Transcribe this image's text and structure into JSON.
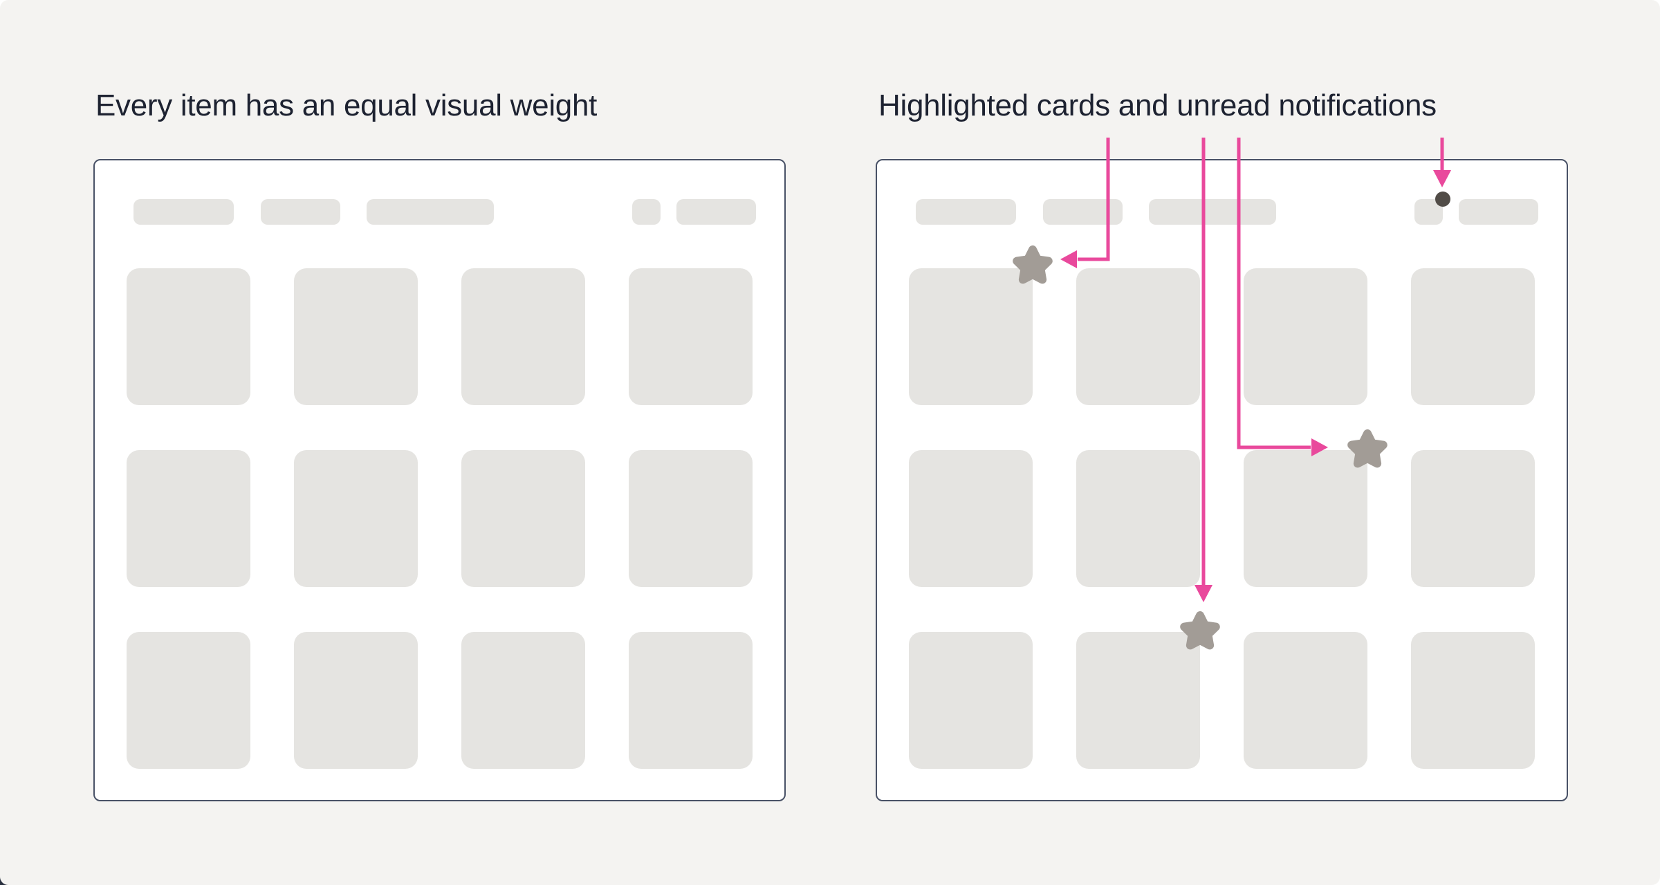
{
  "page": {
    "background_color": "#f4f3f1",
    "panel_border_color": "#485166",
    "placeholder_color": "#e5e4e1",
    "accent_pink": "#e9499c",
    "star_color": "#a29c96",
    "notification_dot_color": "#514c47",
    "title_color": "#1d2231"
  },
  "figures": {
    "left": {
      "title": "Every item has an equal visual weight"
    },
    "right": {
      "title": "Highlighted cards and unread notifications",
      "annotations": {
        "highlighted_cards": [
          "row-1-col-1",
          "row-2-col-3",
          "row-3-col-2"
        ],
        "unread_notification": "navbar-small-pill-top-right",
        "arrow_count": 4,
        "star_count": 3
      }
    }
  },
  "wireframe": {
    "header_pill_count": 5,
    "grid_columns": 4,
    "grid_rows": 3
  }
}
